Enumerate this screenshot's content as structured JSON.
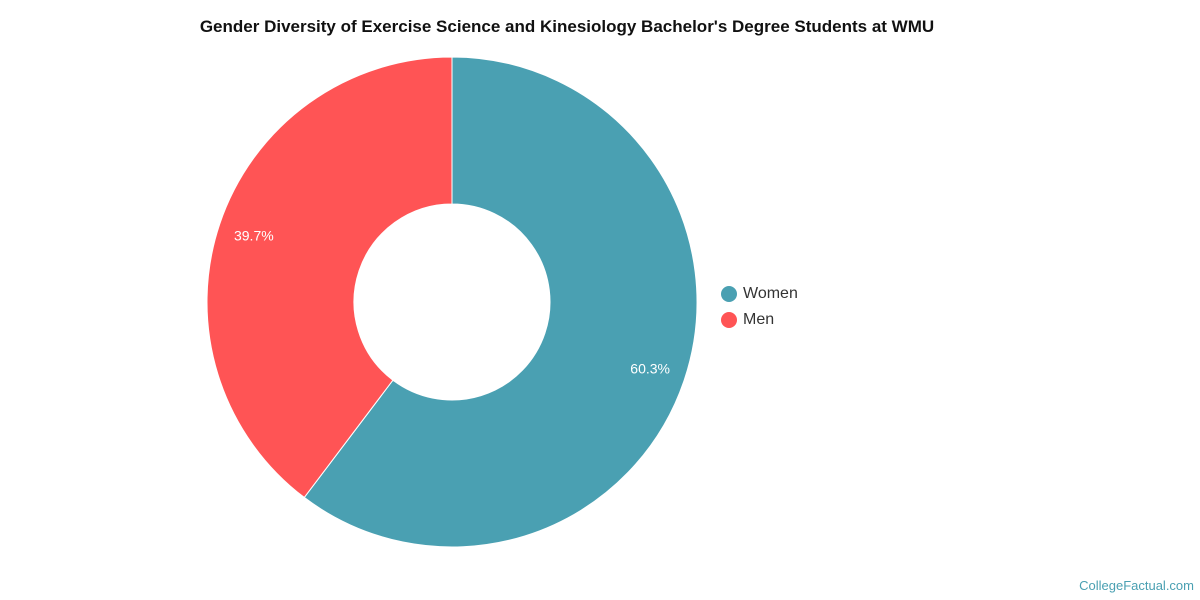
{
  "chart_data": {
    "type": "pie",
    "donut": true,
    "title": "Gender Diversity of Exercise Science and Kinesiology Bachelor's Degree Students at WMU",
    "categories": [
      "Women",
      "Men"
    ],
    "values": [
      60.3,
      39.7
    ],
    "data_labels": [
      "60.3%",
      "39.7%"
    ],
    "colors": [
      "#4aa0b2",
      "#ff5455"
    ],
    "legend_position": "right"
  },
  "credit": "CollegeFactual.com"
}
